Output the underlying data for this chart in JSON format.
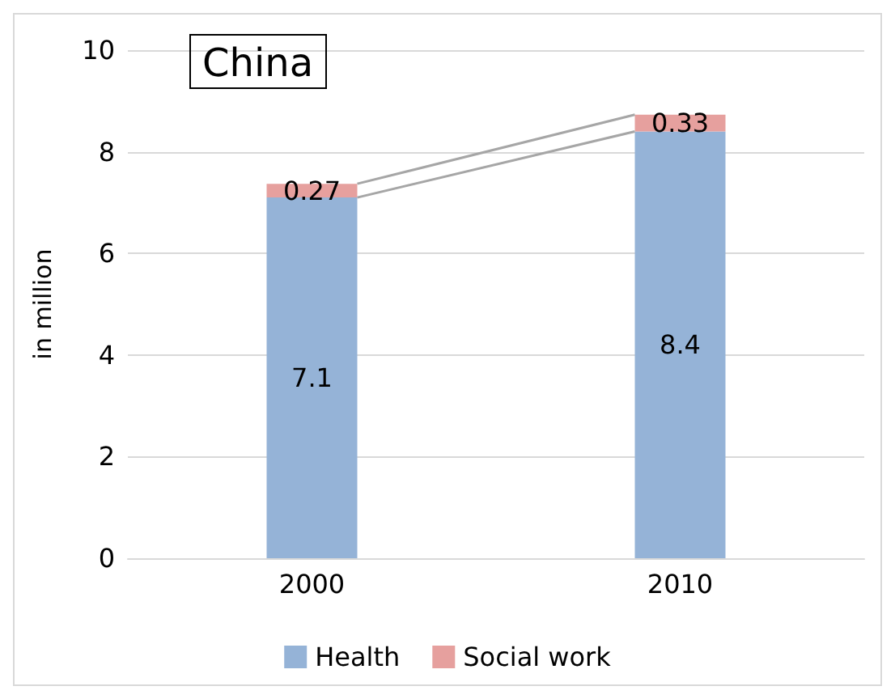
{
  "chart_data": {
    "type": "bar",
    "title": "China",
    "ylabel": "in million",
    "categories": [
      "2000",
      "2010"
    ],
    "stacked": true,
    "series": [
      {
        "name": "Health",
        "color": "#95b3d7",
        "values": [
          7.1,
          8.4
        ]
      },
      {
        "name": "Social work",
        "color": "#e6a09e",
        "values": [
          0.27,
          0.33
        ]
      }
    ],
    "ylim": [
      0,
      10
    ],
    "yticks": [
      0,
      2,
      4,
      6,
      8,
      10
    ],
    "grid": "y",
    "legend": "bottom",
    "data_labels": true
  }
}
